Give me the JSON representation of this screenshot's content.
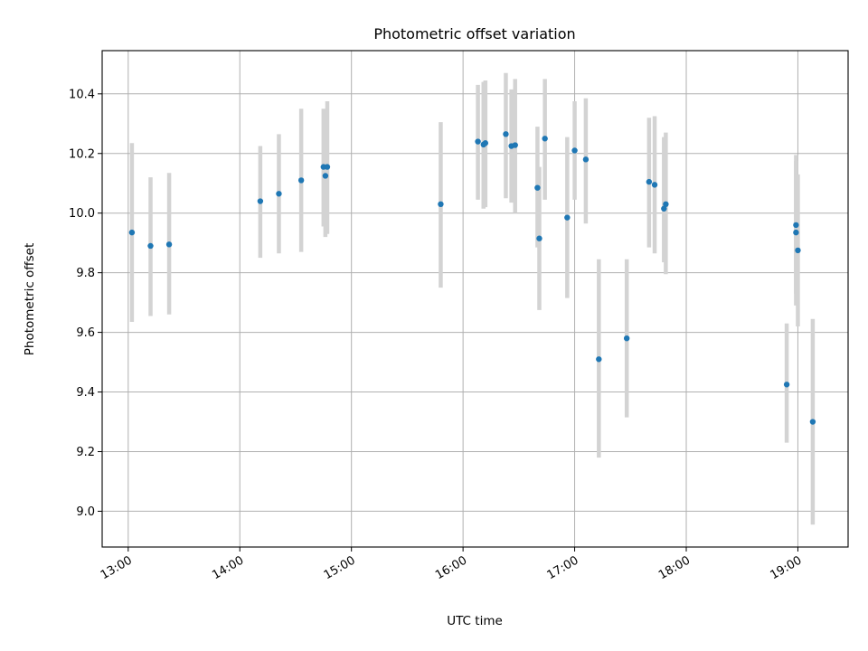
{
  "chart_data": {
    "type": "scatter",
    "title": "Photometric offset variation",
    "xlabel": "UTC time",
    "ylabel": "Photometric offset",
    "xlim": [
      "12:46",
      "19:27"
    ],
    "ylim": [
      8.88,
      10.545
    ],
    "x_ticks": [
      "13:00",
      "14:00",
      "15:00",
      "16:00",
      "17:00",
      "18:00",
      "19:00"
    ],
    "y_ticks": [
      "9.0",
      "9.2",
      "9.4",
      "9.6",
      "9.8",
      "10.0",
      "10.2",
      "10.4"
    ],
    "grid": true,
    "marker_color": "#1f77b4",
    "errorbar_color": "#d3d3d3",
    "points": [
      {
        "time": "13:02",
        "y": 9.935,
        "low": 9.635,
        "high": 10.235
      },
      {
        "time": "13:12",
        "y": 9.89,
        "low": 9.655,
        "high": 10.12
      },
      {
        "time": "13:22",
        "y": 9.895,
        "low": 9.66,
        "high": 10.135
      },
      {
        "time": "14:11",
        "y": 10.04,
        "low": 9.85,
        "high": 10.225
      },
      {
        "time": "14:21",
        "y": 10.065,
        "low": 9.865,
        "high": 10.265
      },
      {
        "time": "14:33",
        "y": 10.11,
        "low": 9.87,
        "high": 10.35
      },
      {
        "time": "14:45",
        "y": 10.155,
        "low": 9.955,
        "high": 10.35
      },
      {
        "time": "14:46",
        "y": 10.125,
        "low": 9.92,
        "high": 10.33
      },
      {
        "time": "14:47",
        "y": 10.155,
        "low": 9.93,
        "high": 10.375
      },
      {
        "time": "15:48",
        "y": 10.03,
        "low": 9.75,
        "high": 10.305
      },
      {
        "time": "16:08",
        "y": 10.24,
        "low": 10.045,
        "high": 10.43
      },
      {
        "time": "16:11",
        "y": 10.23,
        "low": 10.015,
        "high": 10.44
      },
      {
        "time": "16:12",
        "y": 10.235,
        "low": 10.02,
        "high": 10.445
      },
      {
        "time": "16:23",
        "y": 10.265,
        "low": 10.05,
        "high": 10.47
      },
      {
        "time": "16:26",
        "y": 10.225,
        "low": 10.035,
        "high": 10.415
      },
      {
        "time": "16:28",
        "y": 10.228,
        "low": 10.0,
        "high": 10.45
      },
      {
        "time": "16:40",
        "y": 10.085,
        "low": 9.885,
        "high": 10.29
      },
      {
        "time": "16:41",
        "y": 9.915,
        "low": 9.675,
        "high": 10.155
      },
      {
        "time": "16:44",
        "y": 10.25,
        "low": 10.045,
        "high": 10.45
      },
      {
        "time": "16:56",
        "y": 9.985,
        "low": 9.715,
        "high": 10.255
      },
      {
        "time": "17:00",
        "y": 10.21,
        "low": 10.045,
        "high": 10.375
      },
      {
        "time": "17:06",
        "y": 10.18,
        "low": 9.965,
        "high": 10.385
      },
      {
        "time": "17:13",
        "y": 9.51,
        "low": 9.18,
        "high": 9.845
      },
      {
        "time": "17:28",
        "y": 9.58,
        "low": 9.315,
        "high": 9.845
      },
      {
        "time": "17:40",
        "y": 10.105,
        "low": 9.885,
        "high": 10.32
      },
      {
        "time": "17:43",
        "y": 10.095,
        "low": 9.865,
        "high": 10.325
      },
      {
        "time": "17:48",
        "y": 10.015,
        "low": 9.835,
        "high": 10.255
      },
      {
        "time": "17:49",
        "y": 10.03,
        "low": 9.795,
        "high": 10.27
      },
      {
        "time": "18:54",
        "y": 9.425,
        "low": 9.23,
        "high": 9.63
      },
      {
        "time": "18:59",
        "y": 9.96,
        "low": 9.73,
        "high": 10.195
      },
      {
        "time": "18:59",
        "y": 9.935,
        "low": 9.69,
        "high": 10.175
      },
      {
        "time": "19:00",
        "y": 9.875,
        "low": 9.62,
        "high": 10.13
      },
      {
        "time": "19:08",
        "y": 9.3,
        "low": 8.955,
        "high": 9.645
      }
    ]
  }
}
